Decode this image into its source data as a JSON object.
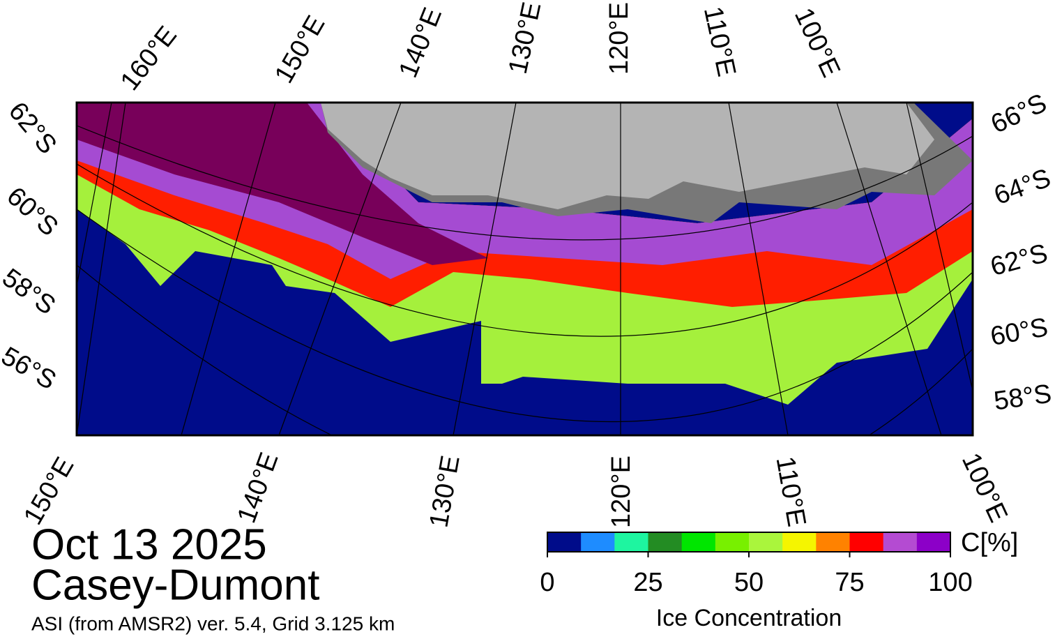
{
  "map": {
    "top_labels": [
      "160°E",
      "150°E",
      "140°E",
      "130°E",
      "120°E",
      "110°E",
      "100°E"
    ],
    "left_labels": [
      "62°S",
      "60°S",
      "58°S",
      "56°S"
    ],
    "right_labels": [
      "66°S",
      "64°S",
      "62°S",
      "60°S",
      "58°S"
    ],
    "bottom_labels": [
      "150°E",
      "140°E",
      "130°E",
      "120°E",
      "110°E",
      "100°E"
    ]
  },
  "date": "Oct 13 2025",
  "region": "Casey-Dumont",
  "source": "ASI (from AMSR2) ver. 5.4,  Grid 3.125 km",
  "colorbar": {
    "title": "Ice Concentration",
    "unit": "C[%]",
    "lim": [
      0,
      100
    ],
    "ticks": [
      0,
      25,
      50,
      75,
      100
    ],
    "colors": [
      "#000c8a",
      "#1e8cff",
      "#1ef5a0",
      "#238c23",
      "#00e600",
      "#78f000",
      "#aaf53c",
      "#f5f500",
      "#ff8200",
      "#ff0000",
      "#b44bd2",
      "#8c00c8"
    ]
  }
}
